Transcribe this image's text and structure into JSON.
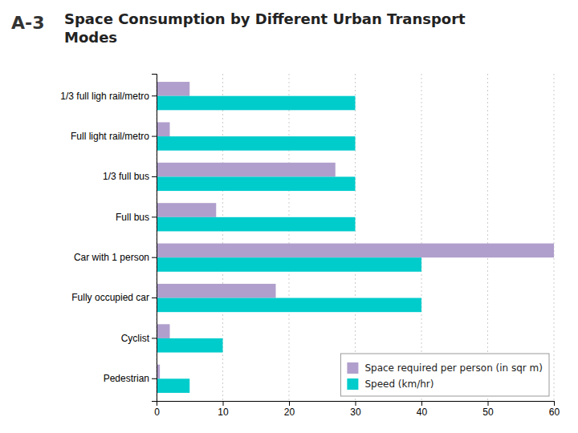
{
  "chart_data": {
    "type": "bar",
    "orientation": "horizontal",
    "title": "Space Consumption by Different Urban Transport\nModes",
    "annotations": [
      "A-3"
    ],
    "categories": [
      "1/3 full ligh rail/metro",
      "Full light rail/metro",
      "1/3 full bus",
      "Full bus",
      "Car with 1 person",
      "Fully occupied car",
      "Cyclist",
      "Pedestrian"
    ],
    "series": [
      {
        "name": "Space required per person (in sqr m)",
        "color": "#b09fcc",
        "values": [
          5,
          2,
          27,
          9,
          60,
          18,
          2,
          0.5
        ]
      },
      {
        "name": "Speed (km/hr)",
        "color": "#00cccc",
        "values": [
          30,
          30,
          30,
          30,
          40,
          40,
          10,
          5
        ]
      }
    ],
    "xlim": [
      0,
      60
    ],
    "xticks": [
      0,
      10,
      20,
      30,
      40,
      50,
      60
    ],
    "grid": true,
    "legend": "lower right"
  }
}
